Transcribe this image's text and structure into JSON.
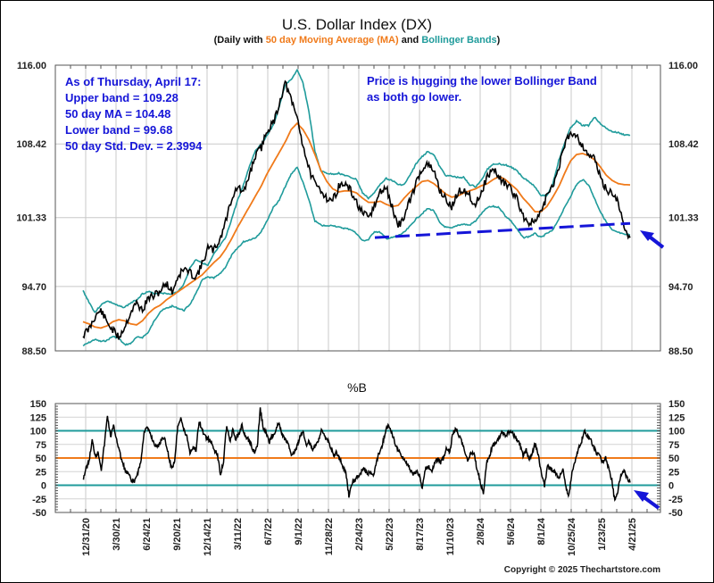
{
  "chart_data": [
    {
      "type": "line",
      "title": "U.S. Dollar Index (DX)",
      "subtitle": {
        "prefix": "(Daily with ",
        "ma_text": "50 day Moving Average (MA)",
        "middle": " and ",
        "bb_text": "Bollinger Bands",
        "suffix": ")"
      },
      "ylim": [
        88.5,
        116.0
      ],
      "yticks": [
        116.0,
        108.42,
        101.33,
        94.7,
        88.5
      ],
      "ytick_labels": [
        "116.00",
        "108.42",
        "101.33",
        "94.70",
        "88.50"
      ],
      "x_labels": [
        "12/31/20",
        "3/30/21",
        "6/24/21",
        "9/20/21",
        "12/14/21",
        "3/11/22",
        "6/7/22",
        "9/1/22",
        "11/28/22",
        "2/24/23",
        "5/22/23",
        "8/17/23",
        "11/10/23",
        "2/8/24",
        "5/6/24",
        "8/1/24",
        "10/25/24",
        "1/23/25",
        "4/21/25"
      ],
      "grid": true,
      "colors": {
        "price": "#000000",
        "ma": "#f07a1a",
        "bands": "#1f9b9b",
        "annotation": "#1515d8"
      },
      "series": [
        {
          "name": "Price",
          "values": [
            90.0,
            90.6,
            91.8,
            92.4,
            91.3,
            90.5,
            89.8,
            90.8,
            92.2,
            93.1,
            92.4,
            93.6,
            93.8,
            94.3,
            95.0,
            94.2,
            95.7,
            96.4,
            96.0,
            95.6,
            96.8,
            98.4,
            98.2,
            99.2,
            101.0,
            103.2,
            104.3,
            103.6,
            105.5,
            107.3,
            108.1,
            109.8,
            110.4,
            112.3,
            114.3,
            112.6,
            111.0,
            108.3,
            106.0,
            104.5,
            104.0,
            103.2,
            103.0,
            104.3,
            104.6,
            103.9,
            102.8,
            101.7,
            101.3,
            102.4,
            103.8,
            104.2,
            102.3,
            100.5,
            101.4,
            103.0,
            104.6,
            106.1,
            106.4,
            105.8,
            104.0,
            103.1,
            102.3,
            103.7,
            104.1,
            103.4,
            102.6,
            103.8,
            105.3,
            106.0,
            105.2,
            104.6,
            104.0,
            103.1,
            101.5,
            100.8,
            101.0,
            101.7,
            103.5,
            104.3,
            106.2,
            108.3,
            109.6,
            109.3,
            108.2,
            107.5,
            107.0,
            105.2,
            104.0,
            103.7,
            102.9,
            100.2,
            99.4
          ]
        },
        {
          "name": "50 day MA",
          "values": [
            91.3,
            91.1,
            90.8,
            90.7,
            90.9,
            91.3,
            91.5,
            91.4,
            91.1,
            91.0,
            91.4,
            92.1,
            92.6,
            92.9,
            93.4,
            93.8,
            94.2,
            94.6,
            95.0,
            95.4,
            95.8,
            96.4,
            97.0,
            97.5,
            98.3,
            99.3,
            100.4,
            101.4,
            102.4,
            103.4,
            104.4,
            105.6,
            106.6,
            107.6,
            108.6,
            109.8,
            110.4,
            109.8,
            108.8,
            107.4,
            105.9,
            104.8,
            104.1,
            103.8,
            103.9,
            103.9,
            103.7,
            103.2,
            102.8,
            102.8,
            102.9,
            102.6,
            102.4,
            102.5,
            103.2,
            103.8,
            104.3,
            104.8,
            104.9,
            104.6,
            104.1,
            103.6,
            103.3,
            103.4,
            103.7,
            103.9,
            104.1,
            104.4,
            104.6,
            105.0,
            105.3,
            105.0,
            104.5,
            104.0,
            103.2,
            102.6,
            101.9,
            101.9,
            102.4,
            103.3,
            104.3,
            105.6,
            106.8,
            107.4,
            107.5,
            107.3,
            106.9,
            106.2,
            105.4,
            104.9,
            104.6,
            104.5,
            104.48
          ]
        },
        {
          "name": "Upper band",
          "values": [
            94.3,
            93.2,
            92.2,
            92.9,
            93.3,
            93.1,
            92.8,
            92.7,
            93.1,
            93.4,
            94.0,
            94.2,
            94.0,
            94.1,
            94.0,
            94.0,
            94.2,
            95.0,
            96.5,
            97.3,
            97.0,
            96.7,
            97.8,
            98.6,
            99.4,
            101.2,
            103.0,
            104.5,
            106.3,
            107.8,
            108.4,
            109.3,
            110.2,
            112.0,
            114.1,
            114.6,
            115.5,
            114.3,
            111.5,
            107.7,
            105.8,
            105.6,
            105.5,
            105.6,
            105.4,
            105.2,
            105.0,
            103.7,
            103.2,
            103.7,
            104.6,
            105.1,
            104.9,
            104.5,
            104.5,
            105.4,
            106.5,
            107.2,
            107.7,
            107.4,
            106.2,
            105.4,
            105.3,
            105.2,
            105.2,
            104.5,
            104.3,
            104.9,
            106.0,
            106.5,
            106.5,
            106.4,
            106.2,
            105.8,
            105.2,
            104.8,
            104.3,
            103.5,
            103.4,
            104.6,
            106.8,
            108.5,
            110.0,
            110.6,
            110.2,
            110.2,
            111.0,
            110.4,
            109.9,
            109.6,
            109.5,
            109.3,
            109.28
          ]
        },
        {
          "name": "Lower band",
          "values": [
            89.0,
            89.3,
            89.6,
            89.4,
            89.5,
            89.9,
            89.7,
            89.1,
            89.2,
            89.8,
            89.8,
            90.3,
            91.4,
            92.3,
            92.6,
            92.8,
            92.6,
            92.4,
            93.0,
            94.0,
            95.3,
            95.6,
            95.5,
            95.9,
            96.6,
            97.7,
            98.4,
            99.0,
            99.2,
            99.4,
            100.0,
            101.1,
            102.3,
            103.0,
            104.3,
            105.5,
            106.2,
            104.7,
            103.0,
            101.0,
            100.6,
            100.5,
            100.6,
            100.4,
            100.3,
            100.2,
            99.8,
            99.1,
            99.2,
            100.0,
            99.9,
            99.3,
            99.4,
            99.6,
            99.9,
            100.5,
            101.2,
            101.7,
            102.2,
            102.0,
            100.8,
            100.4,
            100.3,
            100.6,
            100.7,
            100.6,
            101.0,
            101.7,
            102.3,
            102.4,
            102.3,
            101.5,
            101.0,
            100.2,
            99.4,
            99.5,
            99.8,
            99.4,
            99.8,
            100.1,
            101.2,
            102.3,
            103.4,
            104.5,
            105.0,
            104.5,
            103.2,
            101.9,
            100.9,
            100.1,
            99.9,
            99.7,
            99.68
          ]
        }
      ],
      "trendline": {
        "name": "Lower support trendline",
        "style": "dashed",
        "from": {
          "x_index": 49,
          "y": 99.4
        },
        "to": {
          "x_index": 92,
          "y": 100.6
        }
      },
      "annotations": [
        {
          "lines": [
            "As of Thursday, April 17:",
            "Upper band = 109.28",
            "50 day MA = 104.48",
            "Lower band = 99.68",
            "50 day Std. Dev. = 2.3994"
          ],
          "position": "top-left"
        },
        {
          "lines": [
            "Price is hugging the lower Bollinger Band",
            "as both go lower."
          ],
          "position": "top-center-right"
        },
        {
          "type": "arrow",
          "points_to": "latest price",
          "position": "right"
        }
      ]
    },
    {
      "type": "line",
      "title": "%B",
      "ylim": [
        -50,
        150
      ],
      "yticks": [
        150,
        125,
        100,
        75,
        50,
        25,
        0,
        -25,
        -50
      ],
      "ytick_labels": [
        "150",
        "125",
        "100",
        "75",
        "50",
        "25",
        "0",
        "-25",
        "-50"
      ],
      "reference_lines": [
        {
          "y": 100,
          "color": "#1f9b9b"
        },
        {
          "y": 50,
          "color": "#f07a1a"
        },
        {
          "y": 0,
          "color": "#1f9b9b"
        }
      ],
      "grid": true,
      "series": [
        {
          "name": "%B",
          "values": [
            12,
            30,
            45,
            82,
            55,
            60,
            30,
            75,
            128,
            90,
            108,
            85,
            60,
            40,
            25,
            20,
            5,
            8,
            25,
            45,
            100,
            105,
            95,
            80,
            70,
            75,
            90,
            80,
            55,
            30,
            45,
            110,
            125,
            100,
            90,
            60,
            70,
            65,
            120,
            100,
            90,
            85,
            78,
            65,
            55,
            20,
            45,
            112,
            80,
            100,
            85,
            95,
            110,
            90,
            85,
            75,
            60,
            70,
            140,
            105,
            95,
            80,
            92,
            100,
            115,
            95,
            85,
            78,
            55,
            60,
            70,
            90,
            100,
            75,
            80,
            65,
            72,
            80,
            100,
            90,
            85,
            70,
            55,
            60,
            48,
            35,
            22,
            -20,
            5,
            10,
            15,
            25,
            30,
            20,
            25,
            15,
            45,
            60,
            75,
            100,
            110,
            95,
            80,
            65,
            55,
            50,
            40,
            30,
            20,
            25,
            18,
            -5,
            30,
            35,
            25,
            40,
            48,
            42,
            50,
            70,
            60,
            95,
            105,
            92,
            78,
            58,
            45,
            60,
            55,
            28,
            5,
            -15,
            40,
            55,
            70,
            80,
            85,
            100,
            90,
            95,
            100,
            92,
            85,
            75,
            55,
            65,
            45,
            60,
            78,
            55,
            20,
            0,
            35,
            30,
            25,
            20,
            15,
            30,
            -5,
            -20,
            25,
            45,
            65,
            78,
            100,
            90,
            85,
            70,
            60,
            55,
            42,
            50,
            30,
            10,
            -30,
            -10,
            20,
            25,
            15,
            5
          ]
        }
      ]
    }
  ],
  "copyright": "Copyright © 2025 Thechartstore.com"
}
